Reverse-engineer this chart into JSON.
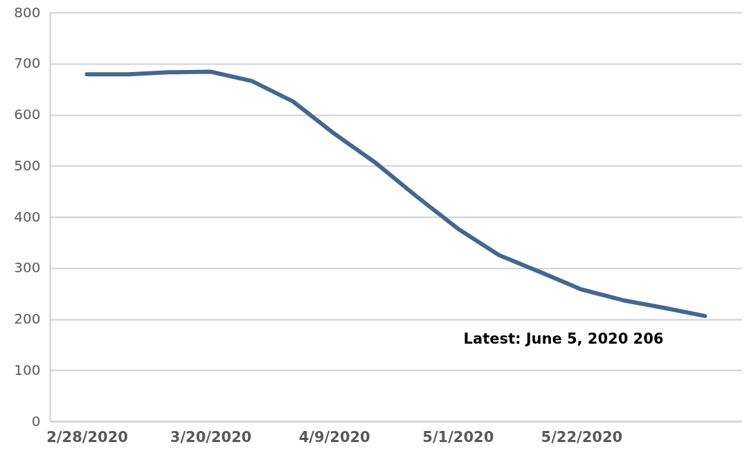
{
  "chart_data": {
    "type": "line",
    "categories": [
      "2/28/2020",
      null,
      null,
      "3/20/2020",
      null,
      null,
      "4/9/2020",
      null,
      null,
      "5/1/2020",
      null,
      null,
      "5/22/2020",
      null,
      null,
      null
    ],
    "series": [
      {
        "color": "#41698f",
        "values": [
          679,
          679,
          683,
          684,
          666,
          626,
          563,
          506,
          440,
          377,
          325,
          292,
          258,
          237,
          222,
          206
        ]
      }
    ],
    "ylim": [
      0,
      800
    ],
    "yticks": [
      0,
      100,
      200,
      300,
      400,
      500,
      600,
      700,
      800
    ],
    "grid": "y",
    "marker": "none",
    "line_style": "solid",
    "annotations": [
      "Latest: June 5, 2020   206"
    ]
  }
}
